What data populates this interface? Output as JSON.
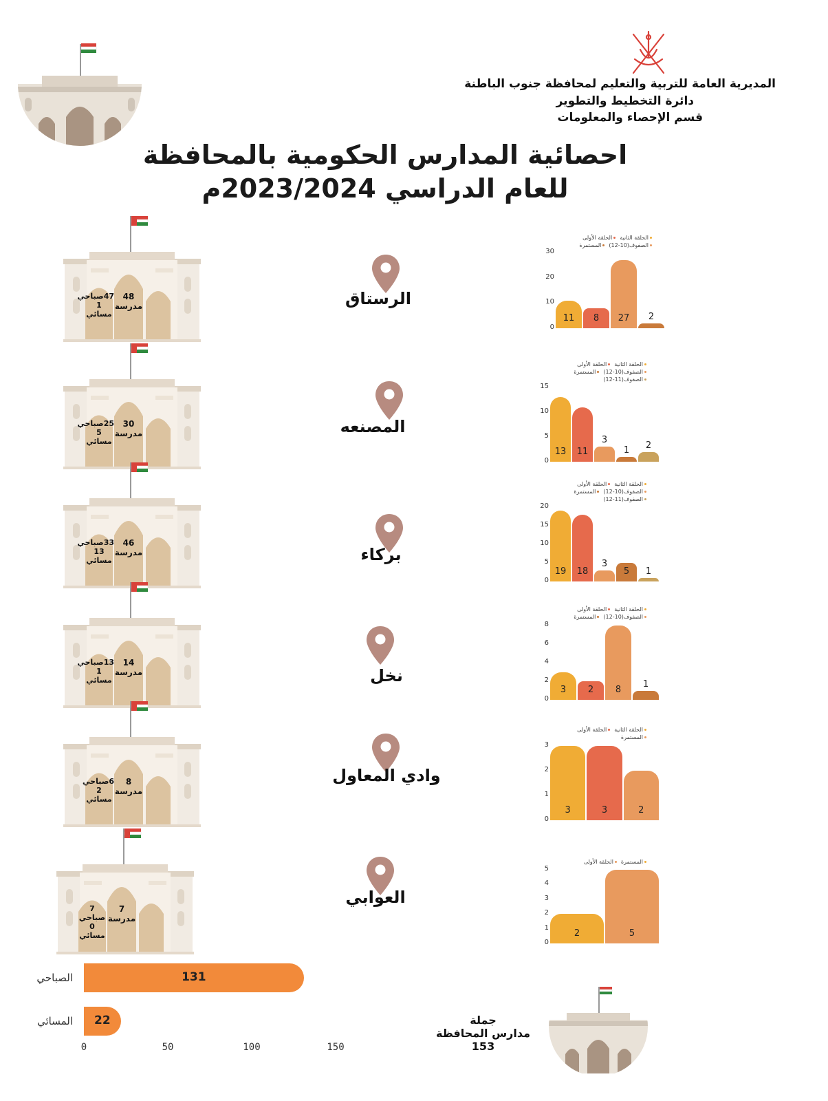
{
  "header": {
    "line1": "المديرية العامة للتربية والتعليم لمحافظة جنوب الباطنة",
    "line2": "دائرة التخطيط والتطوير",
    "line3": "قسم الإحصاء والمعلومات"
  },
  "title": {
    "line1": "احصائية المدارس الحكومية بالمحافظة",
    "line2": "للعام الدراسي 2023/2024م"
  },
  "colors": {
    "first_cycle": "#f0ac35",
    "second_cycle": "#e66a4c",
    "grades_10_12": "#e89a5e",
    "continuing": "#c97a3a",
    "grades_11_12": "#c9a25c",
    "pin": "#b78b80",
    "school_body": "#f4ece2",
    "school_arch": "#dcc3a0",
    "total_bar": "#f28a3a"
  },
  "districts": [
    {
      "name": "الرستاق",
      "school": {
        "total_num": "48",
        "total_word": "مدرسة",
        "shift_line1": "47صباحي",
        "shift_line2": "1",
        "shift_line3": "مسائي"
      },
      "legend": [
        "الحلقة الثانية",
        "الحلقة الأولى",
        "الصفوف(10-12)",
        "المستمرة"
      ],
      "chart": {
        "ymax": 30,
        "ticks": [
          0,
          10,
          20,
          30
        ],
        "values": [
          11,
          8,
          27,
          2
        ],
        "colors": [
          "first_cycle",
          "second_cycle",
          "grades_10_12",
          "continuing"
        ]
      }
    },
    {
      "name": "المصنعه",
      "school": {
        "total_num": "30",
        "total_word": "مدرسة",
        "shift_line1": "25صباحي",
        "shift_line2": "5 مسائي",
        "shift_line3": ""
      },
      "legend": [
        "الحلقة الثانية",
        "الحلقة الأولى",
        "الصفوف(10-12)",
        "المستمرة",
        "الصفوف(11-12)"
      ],
      "chart": {
        "ymax": 15,
        "ticks": [
          0,
          5,
          10,
          15
        ],
        "values": [
          13,
          11,
          3,
          1,
          2
        ],
        "colors": [
          "first_cycle",
          "second_cycle",
          "grades_10_12",
          "continuing",
          "grades_11_12"
        ]
      }
    },
    {
      "name": "بركاء",
      "school": {
        "total_num": "46",
        "total_word": "مدرسة",
        "shift_line1": "33صباحي",
        "shift_line2": "13 مسائي",
        "shift_line3": ""
      },
      "legend": [
        "الحلقة الثانية",
        "الحلقة الأولى",
        "الصفوف(10-12)",
        "المستمرة",
        "الصفوف(11-12)"
      ],
      "chart": {
        "ymax": 20,
        "ticks": [
          0,
          5,
          10,
          15,
          20
        ],
        "values": [
          19,
          18,
          3,
          5,
          1
        ],
        "colors": [
          "first_cycle",
          "second_cycle",
          "grades_10_12",
          "continuing",
          "grades_11_12"
        ]
      }
    },
    {
      "name": "نخل",
      "school": {
        "total_num": "14",
        "total_word": "مدرسة",
        "shift_line1": "13صباحي",
        "shift_line2": "1",
        "shift_line3": "مسائي"
      },
      "legend": [
        "الحلقة الثانية",
        "الحلقة الأولى",
        "الصفوف(10-12)",
        "المستمرة"
      ],
      "chart": {
        "ymax": 8,
        "ticks": [
          0,
          2,
          4,
          6,
          8
        ],
        "values": [
          3,
          2,
          8,
          1
        ],
        "colors": [
          "first_cycle",
          "second_cycle",
          "grades_10_12",
          "continuing"
        ]
      }
    },
    {
      "name": "وادي المعاول",
      "school": {
        "total_num": "8",
        "total_word": "مدرسة",
        "shift_line1": "6صباحي",
        "shift_line2": "2 مسائي",
        "shift_line3": ""
      },
      "legend": [
        "الحلقة الثانية",
        "الحلقة الأولى",
        "المستمرة"
      ],
      "chart": {
        "ymax": 3,
        "ticks": [
          0,
          1,
          2,
          3
        ],
        "values": [
          3,
          3,
          2
        ],
        "colors": [
          "first_cycle",
          "second_cycle",
          "grades_10_12"
        ]
      }
    },
    {
      "name": "العوابي",
      "school": {
        "total_num": "7",
        "total_word": "مدرسة",
        "shift_line1": "7 صباحي",
        "shift_line2": "0",
        "shift_line3": "مسائي"
      },
      "legend": [
        "المستمرة",
        "الحلقة الأولى"
      ],
      "chart": {
        "ymax": 5,
        "ticks": [
          0,
          1,
          2,
          3,
          4,
          5
        ],
        "values": [
          2,
          5
        ],
        "colors": [
          "first_cycle",
          "grades_10_12"
        ]
      }
    }
  ],
  "chart_data": [
    {
      "type": "bar",
      "title": "الرستاق",
      "categories": [
        "الحلقة الأولى",
        "الحلقة الثانية",
        "الصفوف(10-12)",
        "المستمرة"
      ],
      "values": [
        11,
        8,
        27,
        2
      ],
      "ylim": [
        0,
        30
      ]
    },
    {
      "type": "bar",
      "title": "المصنعه",
      "categories": [
        "الحلقة الأولى",
        "الحلقة الثانية",
        "الصفوف(10-12)",
        "المستمرة",
        "الصفوف(11-12)"
      ],
      "values": [
        13,
        11,
        3,
        1,
        2
      ],
      "ylim": [
        0,
        15
      ]
    },
    {
      "type": "bar",
      "title": "بركاء",
      "categories": [
        "الحلقة الأولى",
        "الحلقة الثانية",
        "الصفوف(10-12)",
        "المستمرة",
        "الصفوف(11-12)"
      ],
      "values": [
        19,
        18,
        3,
        5,
        1
      ],
      "ylim": [
        0,
        20
      ]
    },
    {
      "type": "bar",
      "title": "نخل",
      "categories": [
        "الحلقة الأولى",
        "الحلقة الثانية",
        "الصفوف(10-12)",
        "المستمرة"
      ],
      "values": [
        3,
        2,
        8,
        1
      ],
      "ylim": [
        0,
        8
      ]
    },
    {
      "type": "bar",
      "title": "وادي المعاول",
      "categories": [
        "الحلقة الأولى",
        "الحلقة الثانية",
        "المستمرة"
      ],
      "values": [
        3,
        3,
        2
      ],
      "ylim": [
        0,
        3
      ]
    },
    {
      "type": "bar",
      "title": "العوابي",
      "categories": [
        "الحلقة الأولى",
        "المستمرة"
      ],
      "values": [
        2,
        5
      ],
      "ylim": [
        0,
        5
      ]
    },
    {
      "type": "bar",
      "orientation": "horizontal",
      "categories": [
        "الصباحي",
        "المسائي"
      ],
      "values": [
        131,
        22
      ],
      "xlim": [
        0,
        150
      ],
      "xticks": [
        0,
        50,
        100,
        150
      ]
    }
  ],
  "totals": {
    "bars": [
      {
        "label": "الصباحي",
        "value": 131
      },
      {
        "label": "المسائي",
        "value": 22
      }
    ],
    "xmax": 150,
    "xticks": [
      "0",
      "50",
      "100",
      "150"
    ],
    "total_line1": "جملة",
    "total_line2": "مدارس المحافظة",
    "total_line3": "153"
  }
}
